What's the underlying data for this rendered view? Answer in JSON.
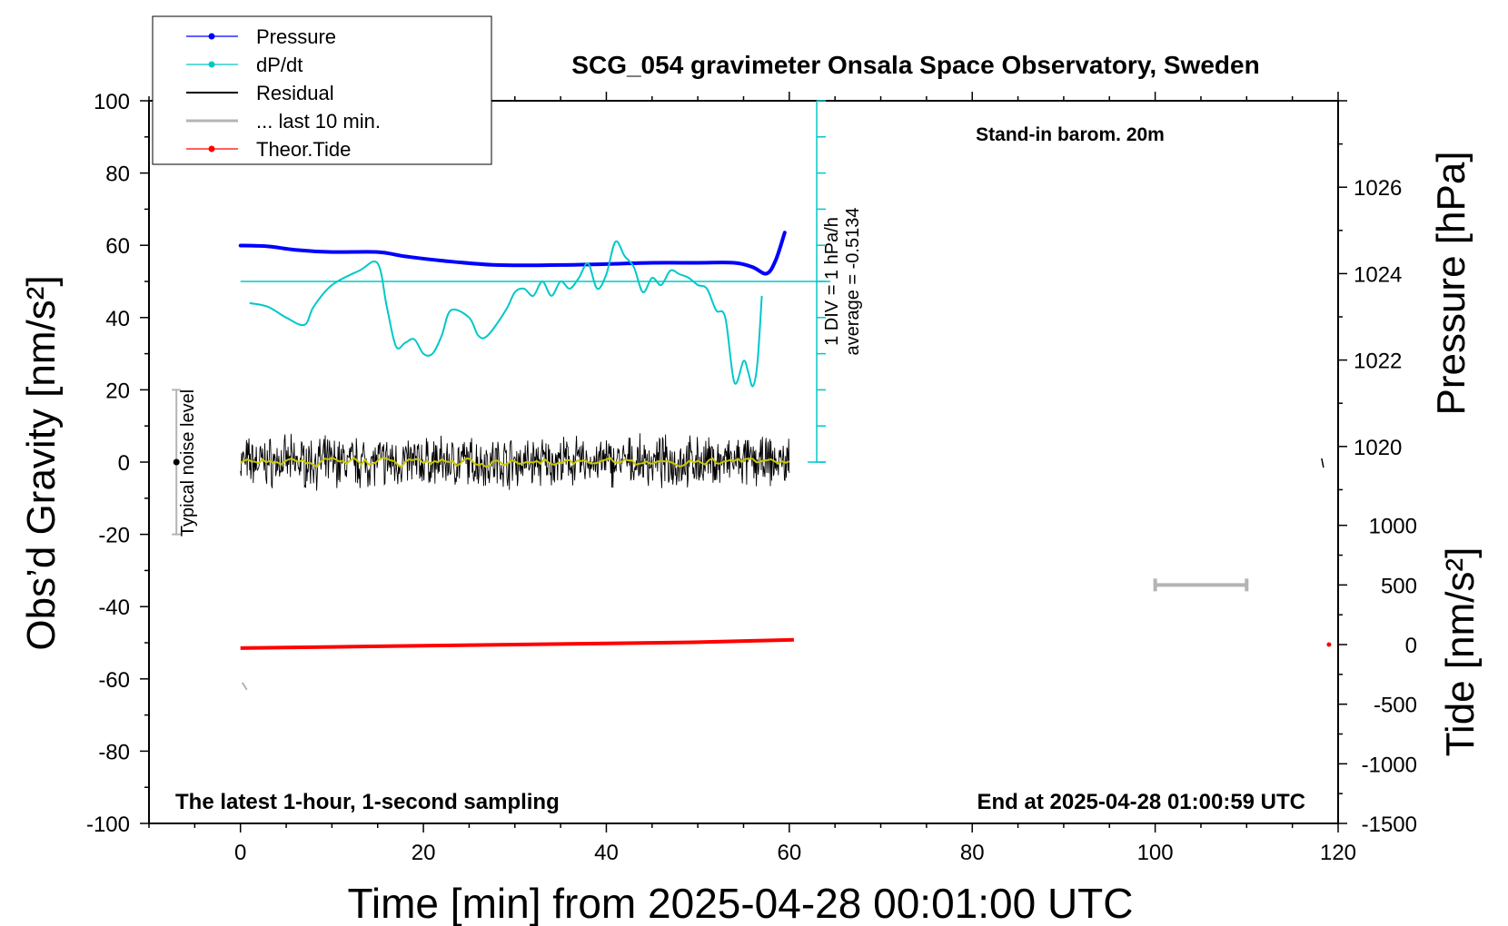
{
  "chart_data": {
    "type": "line",
    "title": "SCG_054 gravimeter Onsala Space Observatory, Sweden",
    "station_note": "Stand-in barom. 20m",
    "footer_left": "The latest 1-hour, 1-second sampling",
    "footer_right": "End at 2025-04-28 01:00:59 UTC",
    "xlabel": "Time [min] from 2025-04-28 00:01:00 UTC",
    "ylabel_left": "Obs’d Gravity [nm/s²]",
    "ylabel_pressure_text": "Pressure [hPa]",
    "ylabel_tide_text": "Tide [nm/s²]",
    "xlim": [
      -10,
      120
    ],
    "ylim_gravity": [
      -100,
      100
    ],
    "pressure_lim": [
      1018,
      1028
    ],
    "tide_lim": [
      -1500,
      1500
    ],
    "x_ticks": [
      "0",
      "20",
      "40",
      "60",
      "80",
      "100",
      "120"
    ],
    "gravity_ticks": [
      "100",
      "80",
      "60",
      "40",
      "20",
      "0",
      "-20",
      "-40",
      "-60",
      "-80",
      "-100"
    ],
    "pressure_ticks": [
      "1026",
      "1024",
      "1022",
      "1020"
    ],
    "tide_ticks": [
      "1000",
      "500",
      "0",
      "-500",
      "-1000",
      "-1500"
    ],
    "dpdt_scale_label": "1 DIV = 1 hPa/h",
    "dpdt_average_label": "average = -0.5134",
    "dpdt_baseline_gravity": 50,
    "noise_label": "Typical noise level",
    "noise_range": [
      -20,
      20
    ],
    "legend": [
      {
        "name": "Pressure",
        "color": "#0000ff",
        "marker": true
      },
      {
        "name": "dP/dt",
        "color": "#00c8c8",
        "marker": true
      },
      {
        "name": "Residual",
        "color": "#000000",
        "marker": false
      },
      {
        "name": "... last 10 min.",
        "color": "#b4b4b4",
        "marker": false
      },
      {
        "name": "Theor.Tide",
        "color": "#ff0000",
        "marker": true
      }
    ],
    "colors": {
      "pressure": "#0000ff",
      "dpdt": "#00c8c8",
      "residual": "#000000",
      "residual_smooth": "#c8c800",
      "last10": "#b4b4b4",
      "tide": "#ff0000"
    },
    "series": [
      {
        "name": "Pressure",
        "axis": "pressure",
        "x": [
          0,
          3,
          6,
          10,
          15,
          18,
          22,
          28,
          35,
          40,
          45,
          50,
          54,
          56,
          57.5,
          58.5,
          59.5
        ],
        "values": [
          1024.65,
          1024.63,
          1024.55,
          1024.5,
          1024.5,
          1024.4,
          1024.3,
          1024.2,
          1024.2,
          1024.22,
          1024.25,
          1024.25,
          1024.25,
          1024.15,
          1024.0,
          1024.3,
          1024.95
        ]
      },
      {
        "name": "dP/dt",
        "axis": "gravity",
        "x": [
          1,
          3,
          5,
          7,
          8,
          10,
          13,
          15,
          16,
          17,
          18,
          19,
          20,
          21,
          22,
          23,
          25,
          26,
          27,
          29,
          30,
          31,
          32,
          33,
          34,
          35,
          36,
          37,
          38,
          39,
          40,
          41,
          42,
          43,
          44,
          45,
          46,
          47,
          48,
          49,
          50,
          51,
          52,
          53,
          54,
          55,
          55.5,
          56,
          56.5,
          57
        ],
        "values": [
          44,
          43,
          40,
          38,
          43,
          49,
          53,
          55,
          43,
          32,
          33,
          34,
          30,
          30,
          35,
          42,
          40,
          35,
          35,
          42,
          47,
          48,
          46,
          50,
          46,
          50,
          48,
          51,
          55,
          48,
          52,
          61,
          57,
          54,
          47,
          51,
          49,
          53,
          52,
          51,
          49,
          48,
          42,
          40,
          22,
          28,
          25,
          21,
          27,
          46
        ]
      },
      {
        "name": "Residual",
        "axis": "gravity",
        "x_range": [
          0,
          60
        ],
        "noise_amplitude": 5
      },
      {
        "name": "Theor.Tide",
        "axis": "tide",
        "x": [
          0,
          10,
          20,
          30,
          40,
          50,
          60.5
        ],
        "values": [
          -30,
          -20,
          -10,
          0,
          10,
          20,
          40
        ]
      }
    ],
    "last10_bracket": {
      "x": [
        100,
        110
      ],
      "tide_value": 500
    }
  }
}
